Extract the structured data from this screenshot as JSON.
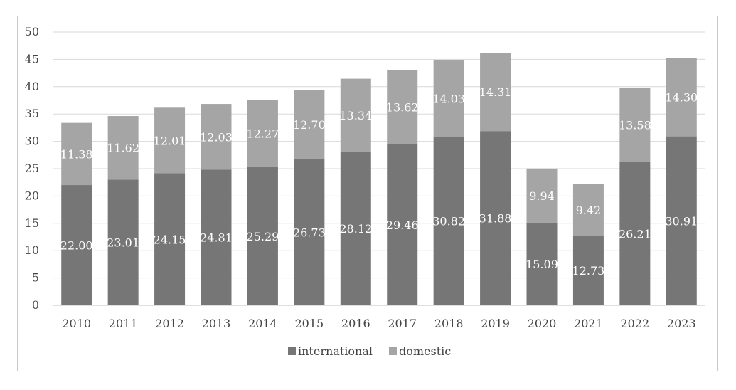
{
  "chart_data": {
    "type": "bar",
    "stacked": true,
    "categories": [
      "2010",
      "2011",
      "2012",
      "2013",
      "2014",
      "2015",
      "2016",
      "2017",
      "2018",
      "2019",
      "2020",
      "2021",
      "2022",
      "2023"
    ],
    "series": [
      {
        "name": "international",
        "color": "#767676",
        "values": [
          22.0,
          23.01,
          24.15,
          24.81,
          25.29,
          26.73,
          28.12,
          29.46,
          30.82,
          31.88,
          15.09,
          12.73,
          26.21,
          30.91
        ],
        "labels": [
          "22.00",
          "23.01",
          "24.15",
          "24.81",
          "25.29",
          "26.73",
          "28.12",
          "29.46",
          "30.82",
          "31.88",
          "15.09",
          "12.73",
          "26.21",
          "30.91"
        ]
      },
      {
        "name": "domestic",
        "color": "#a5a5a5",
        "values": [
          11.38,
          11.62,
          12.01,
          12.03,
          12.27,
          12.7,
          13.34,
          13.62,
          14.03,
          14.31,
          9.94,
          9.42,
          13.58,
          14.3
        ],
        "labels": [
          "11.38",
          "11.62",
          "12.01",
          "12.03",
          "12.27",
          "12.70",
          "13.34",
          "13.62",
          "14.03",
          "14.31",
          "9.94",
          "9.42",
          "13.58",
          "14.30"
        ]
      }
    ],
    "ylim": [
      0,
      50
    ],
    "yticks": [
      "0",
      "5",
      "10",
      "15",
      "20",
      "25",
      "30",
      "35",
      "40",
      "45",
      "50"
    ],
    "grid": true,
    "legend_position": "bottom"
  }
}
